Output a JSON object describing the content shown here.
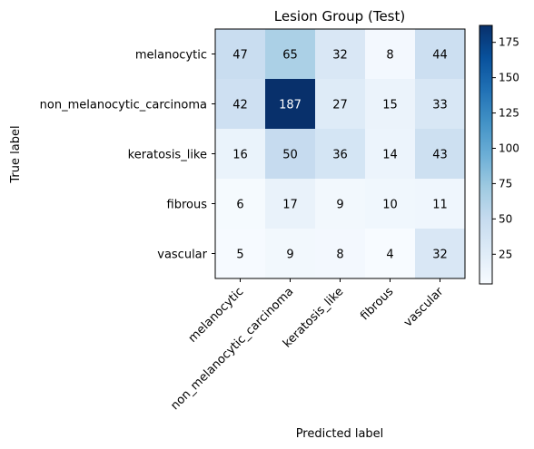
{
  "chart_data": {
    "type": "heatmap",
    "title": "Lesion Group (Test)",
    "xlabel": "Predicted label",
    "ylabel": "True label",
    "x_categories": [
      "melanocytic",
      "non_melanocytic_carcinoma",
      "keratosis_like",
      "fibrous",
      "vascular"
    ],
    "y_categories": [
      "melanocytic",
      "non_melanocytic_carcinoma",
      "keratosis_like",
      "fibrous",
      "vascular"
    ],
    "values": [
      [
        47,
        65,
        32,
        8,
        44
      ],
      [
        42,
        187,
        27,
        15,
        33
      ],
      [
        16,
        50,
        36,
        14,
        43
      ],
      [
        6,
        17,
        9,
        10,
        11
      ],
      [
        5,
        9,
        8,
        4,
        32
      ]
    ],
    "colormap": "Blues",
    "vmin": 4,
    "vmax": 187,
    "colorbar_ticks": [
      25,
      50,
      75,
      100,
      125,
      150,
      175
    ],
    "grid": false
  }
}
